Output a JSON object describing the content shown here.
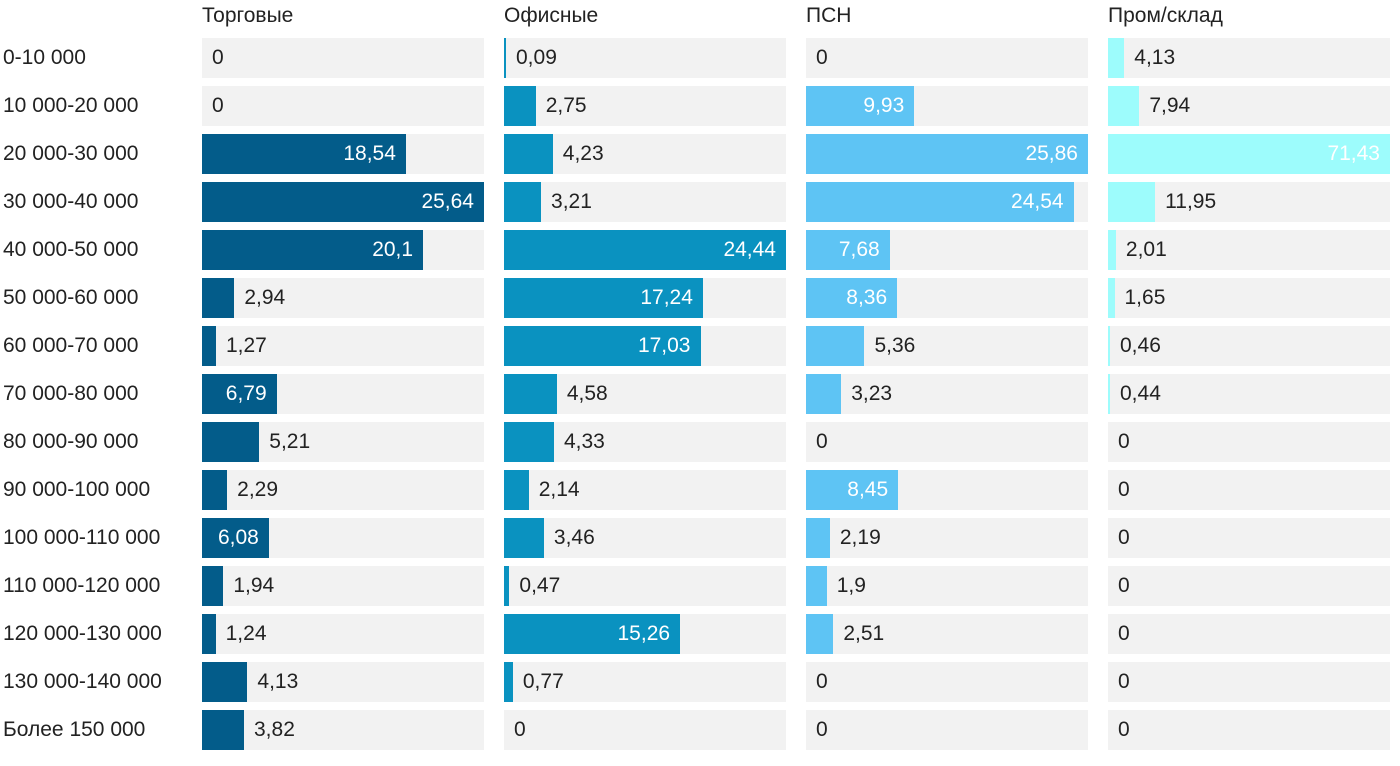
{
  "chart_data": {
    "type": "bar",
    "orientation": "horizontal",
    "layout": "small-multiples",
    "categories": [
      "0-10 000",
      "10 000-20 000",
      "20 000-30 000",
      "30 000-40 000",
      "40 000-50 000",
      "50 000-60 000",
      "60 000-70 000",
      "70 000-80 000",
      "80 000-90 000",
      "90 000-100 000",
      "100 000-110 000",
      "110 000-120 000",
      "120 000-130 000",
      "130 000-140 000",
      "Более 150 000"
    ],
    "series": [
      {
        "name": "Торговые",
        "color": "#035c8a",
        "values": [
          "0",
          "0",
          "18,54",
          "25,64",
          "20,1",
          "2,94",
          "1,27",
          "6,79",
          "5,21",
          "2,29",
          "6,08",
          "1,94",
          "1,24",
          "4,13",
          "3,82"
        ]
      },
      {
        "name": "Офисные",
        "color": "#0a92c0",
        "values": [
          "0,09",
          "2,75",
          "4,23",
          "3,21",
          "24,44",
          "17,24",
          "17,03",
          "4,58",
          "4,33",
          "2,14",
          "3,46",
          "0,47",
          "15,26",
          "0,77",
          "0"
        ]
      },
      {
        "name": "ПСН",
        "color": "#5ec4f4",
        "values": [
          "0",
          "9,93",
          "25,86",
          "24,54",
          "7,68",
          "8,36",
          "5,36",
          "3,23",
          "0",
          "8,45",
          "2,19",
          "1,9",
          "2,51",
          "0",
          "0"
        ]
      },
      {
        "name": "Пром/склад",
        "color": "#9dfcfc",
        "values": [
          "4,13",
          "7,94",
          "71,43",
          "11,95",
          "2,01",
          "1,65",
          "0,46",
          "0,44",
          "0",
          "0",
          "0",
          "0",
          "0",
          "0",
          "0"
        ]
      }
    ],
    "xmax": [
      25.64,
      24.44,
      25.86,
      71.43
    ],
    "track_color": "#f2f2f2",
    "label_inside_color": "#ffffff",
    "label_outside_color": "#222222"
  }
}
